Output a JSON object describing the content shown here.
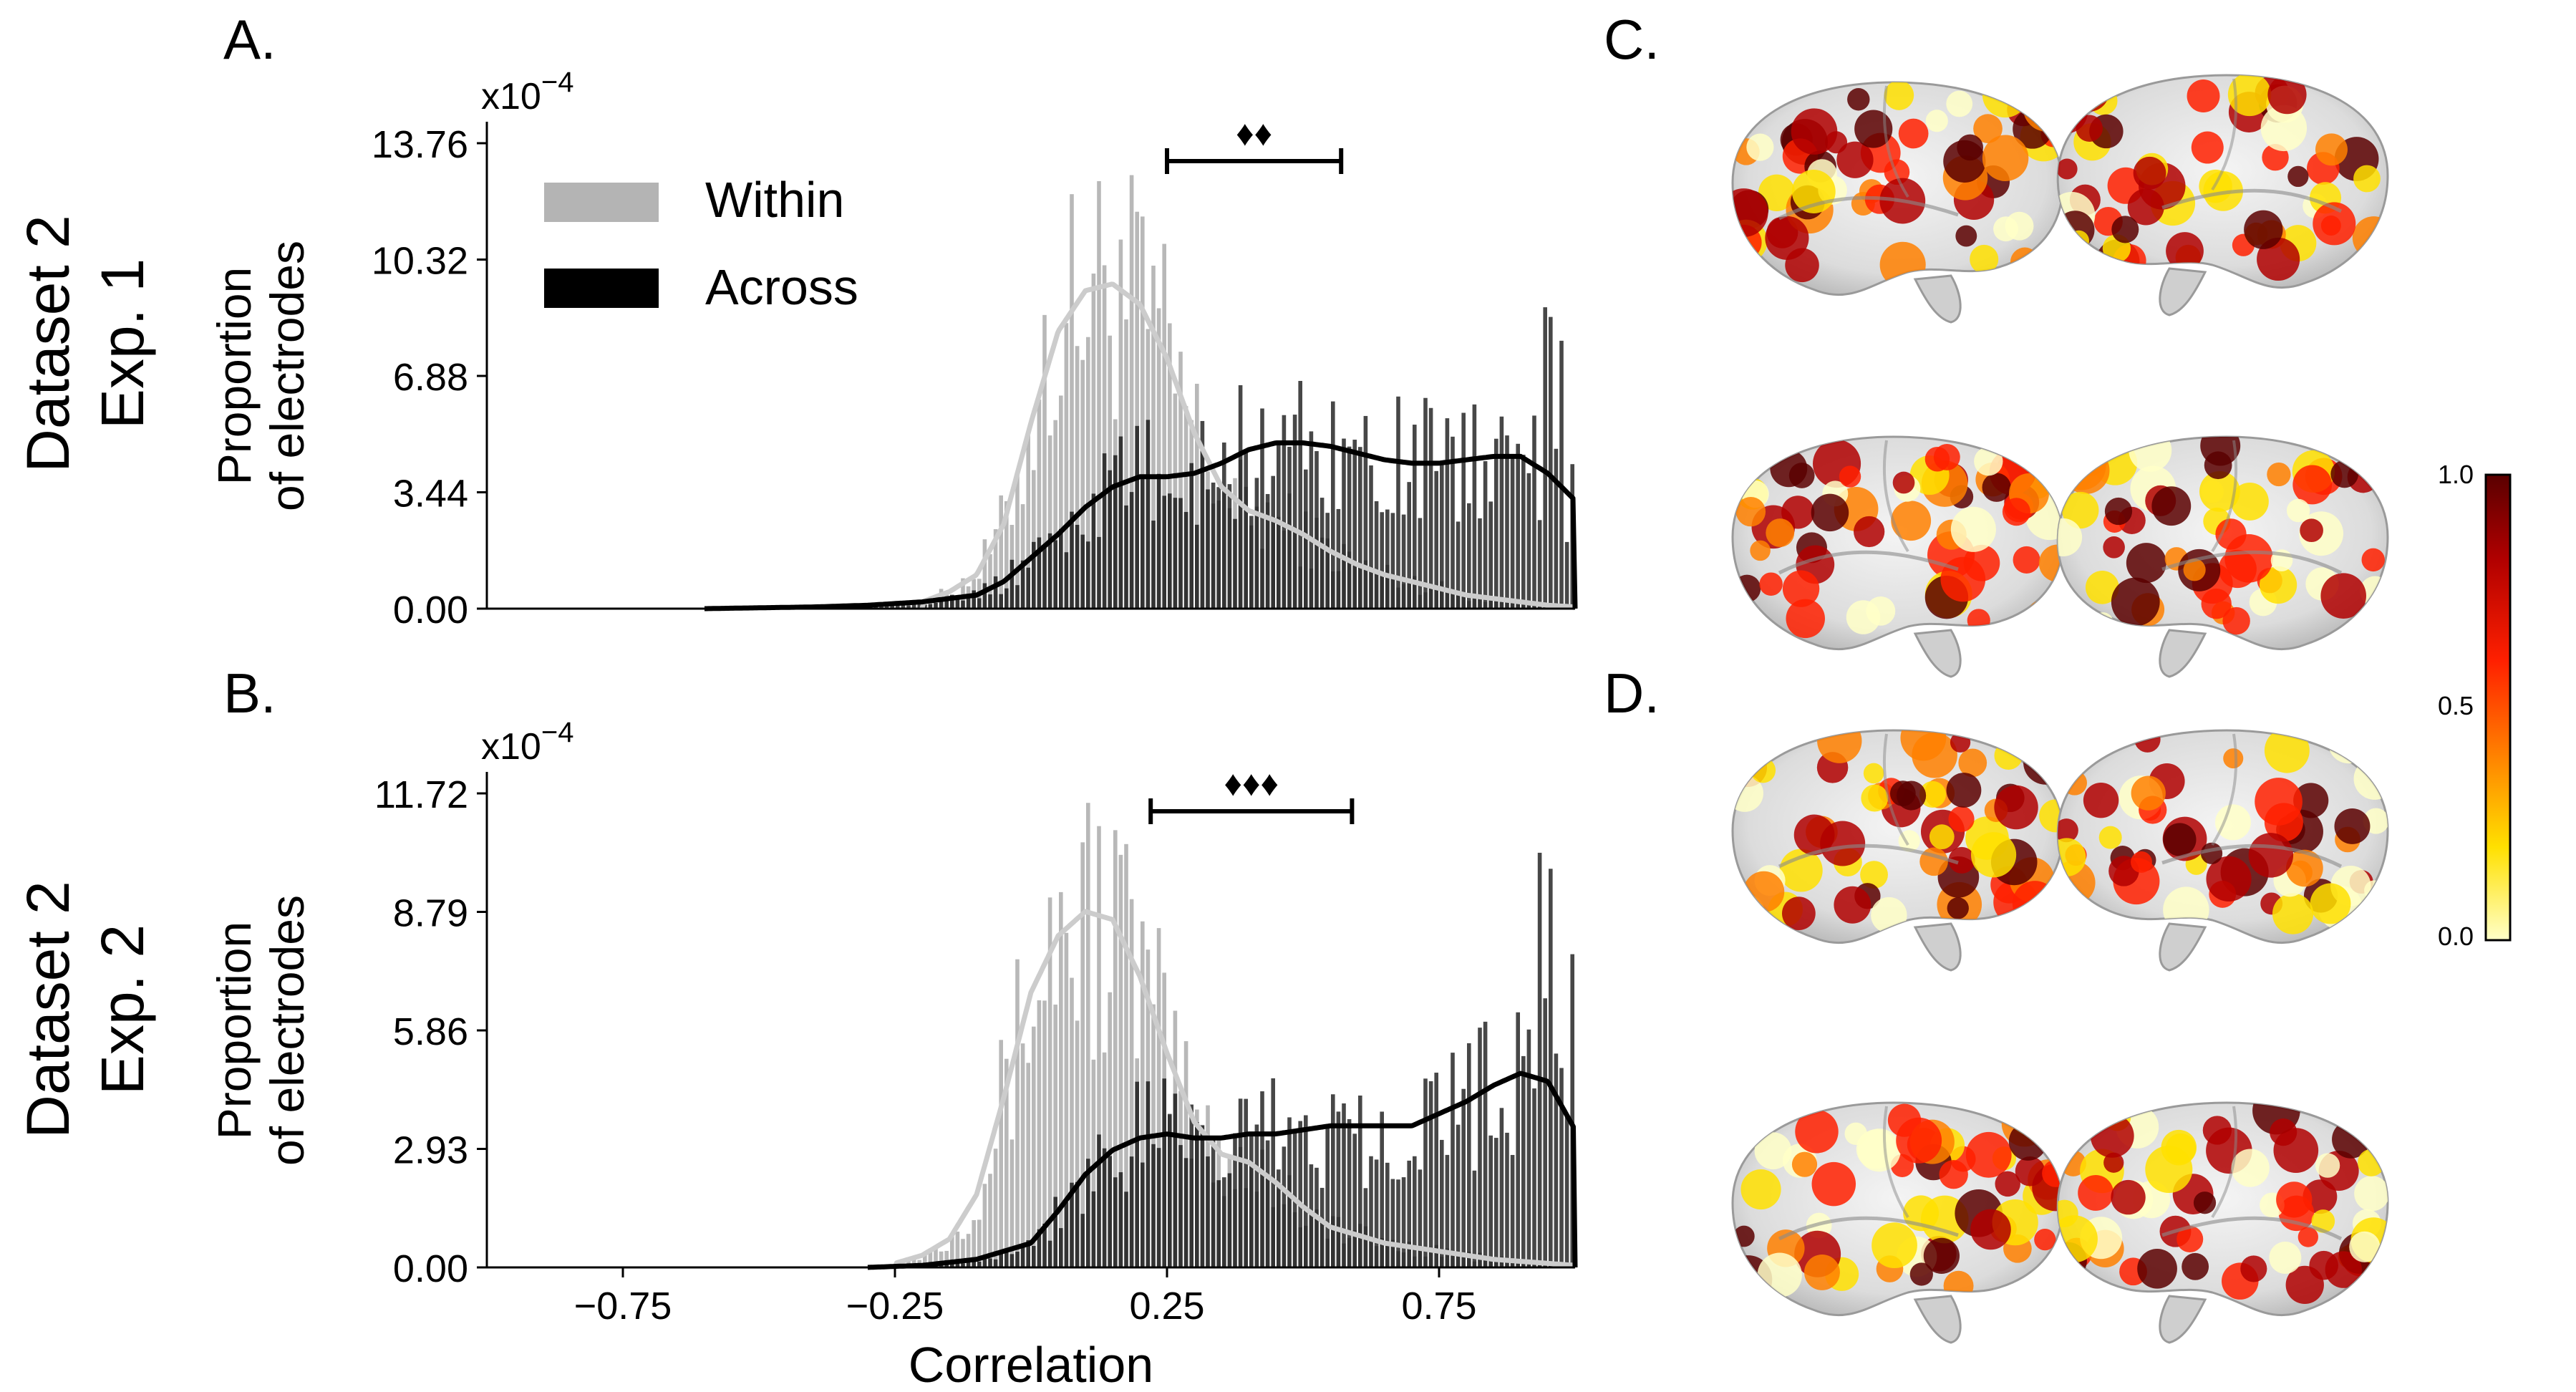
{
  "figure": {
    "panel_labels": {
      "A": "A.",
      "B": "B.",
      "C": "C.",
      "D": "D."
    },
    "row_labels": [
      {
        "line1": "Dataset 2",
        "line2": "Exp. 1"
      },
      {
        "line1": "Dataset 2",
        "line2": "Exp. 2"
      }
    ],
    "colorbar": {
      "ticks": [
        "1.0",
        "0.5",
        "0.0"
      ],
      "colors": [
        "#5a0000",
        "#b00000",
        "#ff2000",
        "#ff8000",
        "#ffe000",
        "#ffffc8"
      ]
    }
  },
  "chart_data": [
    {
      "type": "bar",
      "panel": "A.",
      "ylabel_line1": "Proportion",
      "ylabel_line2": "of electrodes",
      "y_multiplier": "x10",
      "y_exponent": "−4",
      "yticks": [
        "0.00",
        "3.44",
        "6.88",
        "10.32",
        "13.76"
      ],
      "ylim": [
        0,
        13.76
      ],
      "xlim": [
        -1.0,
        1.0
      ],
      "legend": [
        {
          "name": "Within",
          "color": "#b4b4b4"
        },
        {
          "name": "Across",
          "color": "#000000"
        }
      ],
      "significance": "♦♦",
      "significance_span": [
        0.25,
        0.57
      ],
      "series": [
        {
          "name": "Within",
          "color": "#b4b4b4",
          "line_color": "#cccccc",
          "x": [
            -0.2,
            -0.15,
            -0.1,
            -0.05,
            0.0,
            0.05,
            0.1,
            0.15,
            0.2,
            0.25,
            0.3,
            0.35,
            0.4,
            0.45,
            0.5,
            0.55,
            0.6,
            0.65,
            0.7,
            0.75,
            0.8,
            0.85,
            0.9,
            0.95,
            1.0
          ],
          "values": [
            0.2,
            0.5,
            1.0,
            2.5,
            5.5,
            8.2,
            9.4,
            9.6,
            9.0,
            7.4,
            5.2,
            3.6,
            2.9,
            2.6,
            2.2,
            1.7,
            1.3,
            1.0,
            0.8,
            0.6,
            0.4,
            0.3,
            0.2,
            0.1,
            0.05
          ]
        },
        {
          "name": "Across",
          "color": "#000000",
          "line_color": "#000000",
          "x": [
            -0.6,
            -0.4,
            -0.3,
            -0.2,
            -0.1,
            -0.05,
            0.0,
            0.05,
            0.1,
            0.15,
            0.2,
            0.25,
            0.3,
            0.35,
            0.4,
            0.45,
            0.5,
            0.55,
            0.6,
            0.65,
            0.7,
            0.75,
            0.8,
            0.85,
            0.9,
            0.95,
            1.0
          ],
          "values": [
            0.0,
            0.05,
            0.1,
            0.2,
            0.4,
            0.8,
            1.5,
            2.2,
            3.0,
            3.6,
            3.9,
            3.9,
            4.0,
            4.3,
            4.7,
            4.9,
            4.9,
            4.8,
            4.6,
            4.4,
            4.3,
            4.3,
            4.4,
            4.5,
            4.5,
            4.0,
            3.2
          ]
        }
      ]
    },
    {
      "type": "bar",
      "panel": "B.",
      "ylabel_line1": "Proportion",
      "ylabel_line2": "of electrodes",
      "y_multiplier": "x10",
      "y_exponent": "−4",
      "yticks": [
        "0.00",
        "2.93",
        "5.86",
        "8.79",
        "11.72"
      ],
      "ylim": [
        0,
        11.72
      ],
      "xlim": [
        -1.0,
        1.0
      ],
      "xticks": [
        "−0.75",
        "−0.25",
        "0.25",
        "0.75"
      ],
      "xtick_values": [
        -0.75,
        -0.25,
        0.25,
        0.75
      ],
      "xlabel": "Correlation",
      "significance": "♦♦♦",
      "significance_span": [
        0.22,
        0.59
      ],
      "series": [
        {
          "name": "Within",
          "color": "#b4b4b4",
          "line_color": "#cccccc",
          "x": [
            -0.25,
            -0.2,
            -0.15,
            -0.1,
            -0.05,
            0.0,
            0.05,
            0.1,
            0.15,
            0.2,
            0.25,
            0.3,
            0.35,
            0.4,
            0.45,
            0.5,
            0.55,
            0.6,
            0.65,
            0.7,
            0.75,
            0.8,
            0.85,
            0.9,
            0.95,
            1.0
          ],
          "values": [
            0.1,
            0.3,
            0.7,
            1.8,
            4.2,
            6.8,
            8.2,
            8.8,
            8.6,
            7.2,
            5.3,
            3.6,
            2.8,
            2.6,
            2.1,
            1.5,
            1.0,
            0.8,
            0.6,
            0.5,
            0.4,
            0.3,
            0.2,
            0.15,
            0.1,
            0.05
          ]
        },
        {
          "name": "Across",
          "color": "#000000",
          "line_color": "#000000",
          "x": [
            -0.3,
            -0.2,
            -0.1,
            0.0,
            0.05,
            0.1,
            0.15,
            0.2,
            0.25,
            0.3,
            0.35,
            0.4,
            0.45,
            0.5,
            0.55,
            0.6,
            0.65,
            0.7,
            0.75,
            0.8,
            0.85,
            0.9,
            0.95,
            1.0
          ],
          "values": [
            0.0,
            0.05,
            0.2,
            0.6,
            1.4,
            2.3,
            2.9,
            3.2,
            3.3,
            3.2,
            3.2,
            3.3,
            3.3,
            3.4,
            3.5,
            3.5,
            3.5,
            3.5,
            3.8,
            4.1,
            4.5,
            4.8,
            4.6,
            3.4
          ]
        }
      ]
    }
  ]
}
